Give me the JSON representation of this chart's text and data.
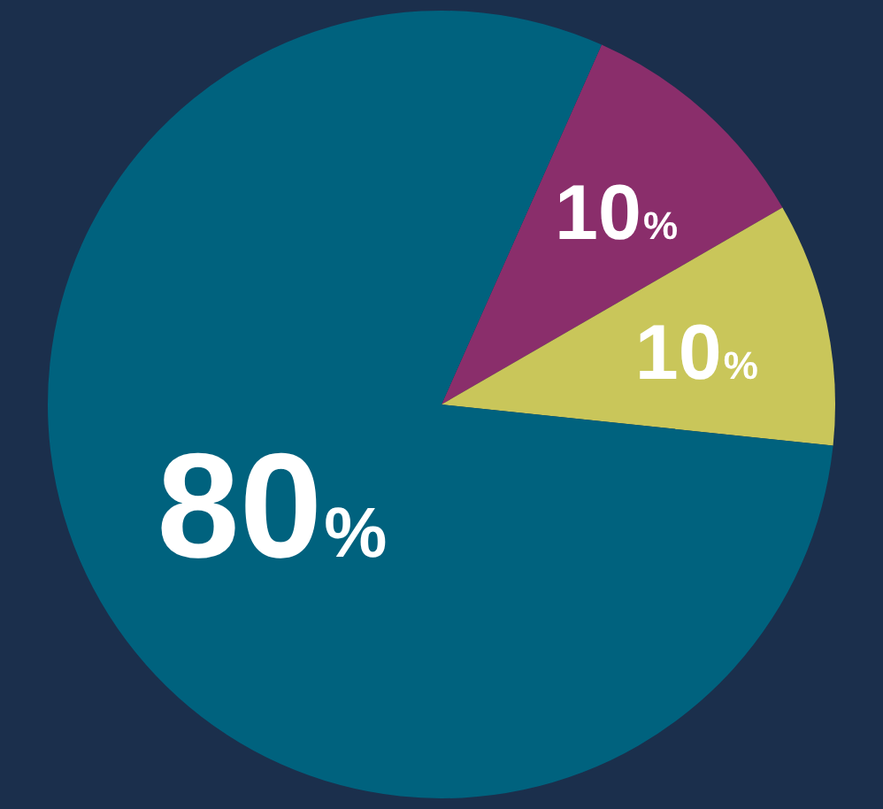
{
  "chart_data": {
    "type": "pie",
    "categories": [
      null,
      null,
      null
    ],
    "values": [
      10,
      10,
      80
    ],
    "colors": [
      "#8a2e6b",
      "#c9c65a",
      "#00627e"
    ],
    "value_labels": [
      "10%",
      "10%",
      "80%"
    ]
  }
}
